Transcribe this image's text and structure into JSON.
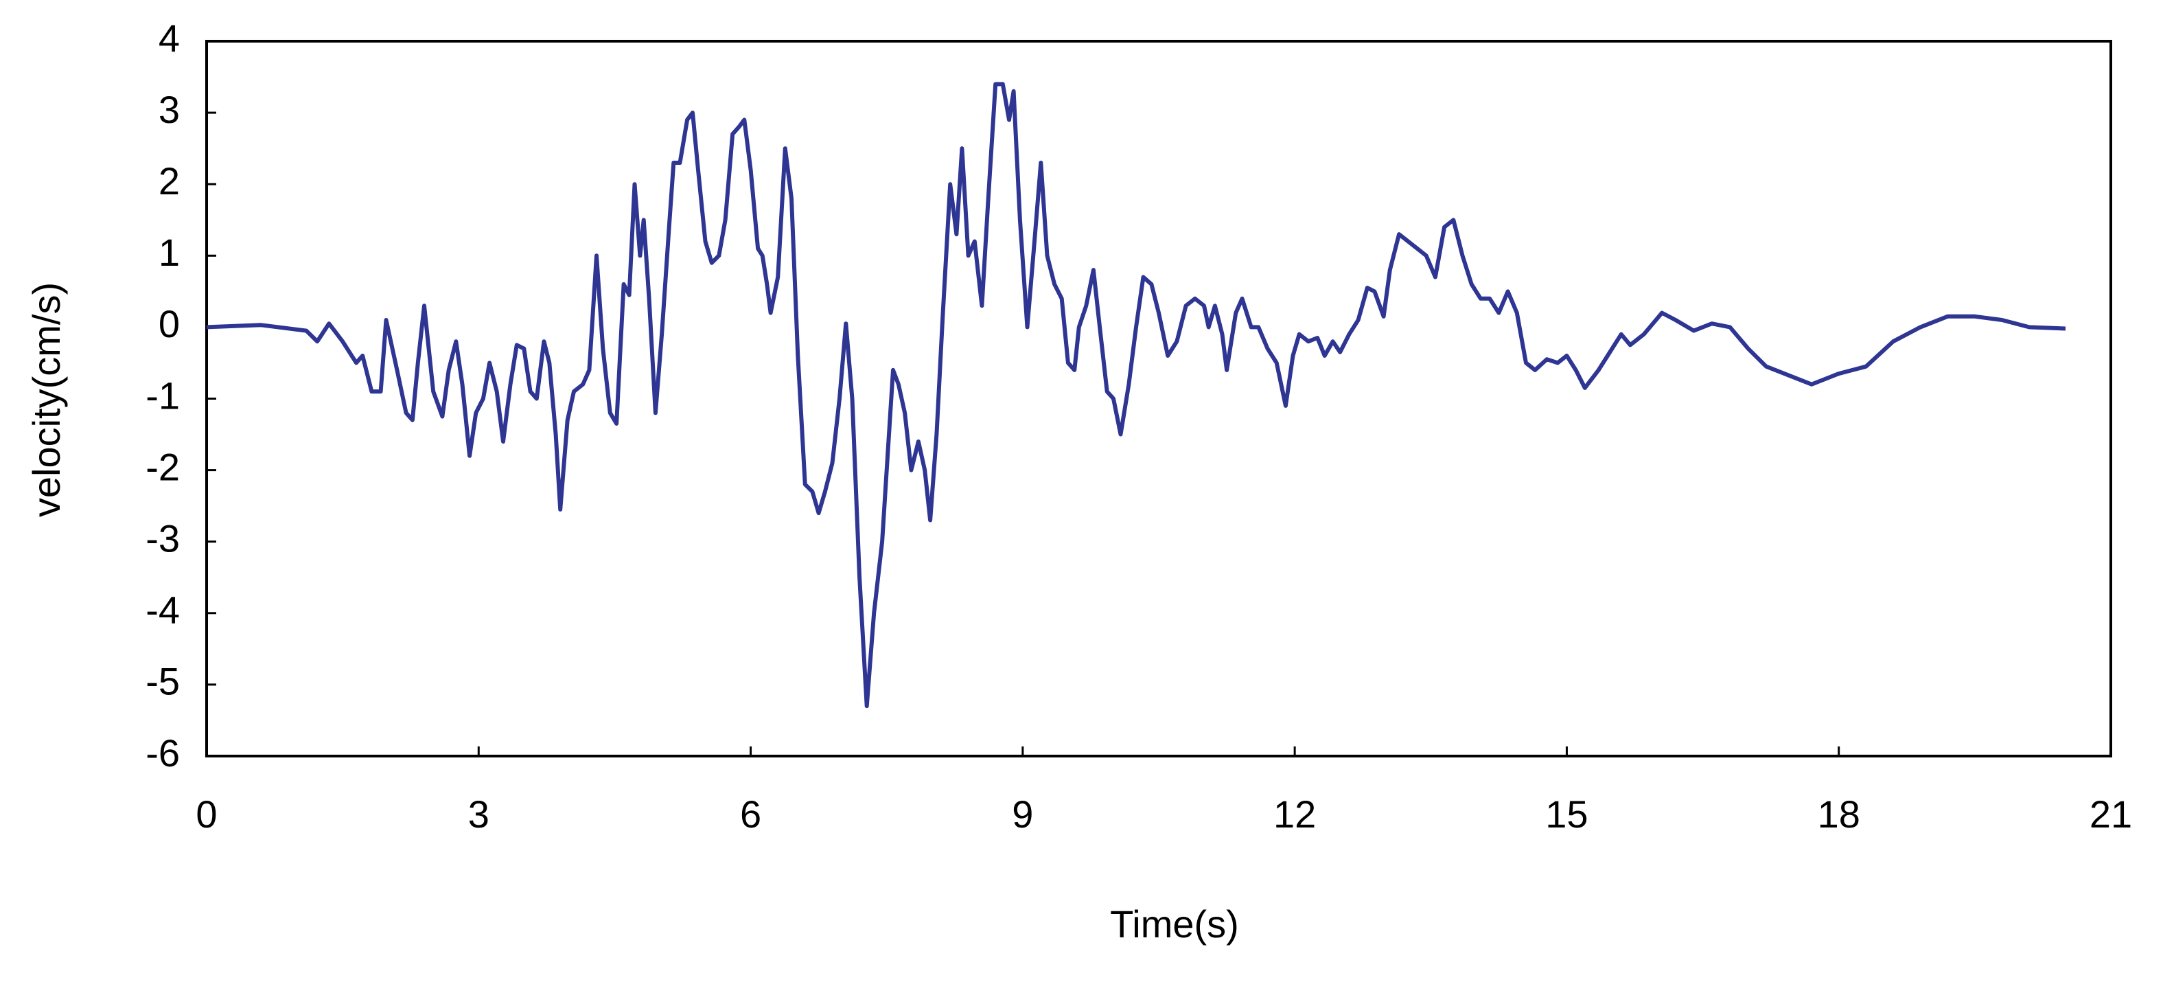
{
  "chart_data": {
    "type": "line",
    "x_label": "Time(s)",
    "y_label": "velocity(cm/s)",
    "color": "#2e3592",
    "xlim": [
      0,
      21
    ],
    "xticks": [
      0,
      3,
      6,
      9,
      12,
      15,
      18,
      21
    ],
    "ylim": [
      -6,
      4
    ],
    "yticks": [
      -6,
      -5,
      -4,
      -3,
      -2,
      -1,
      0,
      1,
      2,
      3,
      4
    ],
    "x": [
      0,
      0.6,
      1.1,
      1.22,
      1.35,
      1.5,
      1.65,
      1.72,
      1.82,
      1.92,
      1.98,
      2.1,
      2.2,
      2.27,
      2.33,
      2.4,
      2.5,
      2.6,
      2.67,
      2.75,
      2.82,
      2.9,
      2.97,
      3.05,
      3.12,
      3.2,
      3.27,
      3.35,
      3.42,
      3.5,
      3.57,
      3.64,
      3.72,
      3.78,
      3.85,
      3.9,
      3.98,
      4.05,
      4.15,
      4.22,
      4.3,
      4.37,
      4.45,
      4.52,
      4.6,
      4.66,
      4.72,
      4.78,
      4.82,
      4.88,
      4.95,
      5.02,
      5.1,
      5.15,
      5.22,
      5.3,
      5.36,
      5.42,
      5.5,
      5.57,
      5.65,
      5.72,
      5.8,
      5.87,
      5.93,
      6.0,
      6.08,
      6.13,
      6.18,
      6.22,
      6.3,
      6.38,
      6.45,
      6.52,
      6.6,
      6.68,
      6.75,
      6.82,
      6.9,
      6.98,
      7.05,
      7.12,
      7.2,
      7.28,
      7.36,
      7.45,
      7.5,
      7.57,
      7.63,
      7.7,
      7.77,
      7.85,
      7.92,
      7.98,
      8.05,
      8.12,
      8.2,
      8.27,
      8.33,
      8.4,
      8.47,
      8.55,
      8.62,
      8.7,
      8.78,
      8.85,
      8.9,
      8.97,
      9.05,
      9.13,
      9.2,
      9.27,
      9.35,
      9.43,
      9.5,
      9.57,
      9.62,
      9.7,
      9.78,
      9.85,
      9.93,
      10.0,
      10.08,
      10.17,
      10.25,
      10.33,
      10.42,
      10.5,
      10.6,
      10.7,
      10.8,
      10.9,
      11.0,
      11.05,
      11.12,
      11.2,
      11.25,
      11.35,
      11.42,
      11.52,
      11.6,
      11.7,
      11.8,
      11.9,
      11.98,
      12.05,
      12.15,
      12.25,
      12.33,
      12.42,
      12.5,
      12.6,
      12.7,
      12.8,
      12.88,
      12.98,
      13.05,
      13.15,
      13.25,
      13.35,
      13.45,
      13.55,
      13.65,
      13.75,
      13.85,
      13.95,
      14.05,
      14.15,
      14.25,
      14.35,
      14.45,
      14.55,
      14.65,
      14.78,
      14.9,
      15.0,
      15.1,
      15.2,
      15.35,
      15.5,
      15.6,
      15.7,
      15.85,
      16.05,
      16.2,
      16.4,
      16.6,
      16.8,
      17.0,
      17.2,
      17.5,
      17.7,
      18.0,
      18.3,
      18.6,
      18.9,
      19.2,
      19.5,
      19.8,
      20.1,
      20.5
    ],
    "values": [
      0,
      0.03,
      -0.05,
      -0.2,
      0.05,
      -0.2,
      -0.5,
      -0.4,
      -0.9,
      -0.9,
      0.1,
      -0.6,
      -1.2,
      -1.3,
      -0.5,
      0.3,
      -0.9,
      -1.25,
      -0.6,
      -0.2,
      -0.8,
      -1.8,
      -1.2,
      -1.0,
      -0.5,
      -0.9,
      -1.6,
      -0.8,
      -0.25,
      -0.3,
      -0.9,
      -1.0,
      -0.2,
      -0.5,
      -1.5,
      -2.55,
      -1.3,
      -0.9,
      -0.8,
      -0.6,
      1.0,
      -0.3,
      -1.2,
      -1.35,
      0.6,
      0.45,
      2.0,
      1.0,
      1.5,
      0.4,
      -1.2,
      -0.1,
      1.4,
      2.3,
      2.3,
      2.9,
      3.0,
      2.2,
      1.2,
      0.9,
      1.0,
      1.5,
      2.7,
      2.8,
      2.9,
      2.2,
      1.1,
      1.0,
      0.6,
      0.2,
      0.7,
      2.5,
      1.8,
      -0.4,
      -2.2,
      -2.3,
      -2.6,
      -2.3,
      -1.9,
      -1.0,
      0.05,
      -1.0,
      -3.5,
      -5.3,
      -4.0,
      -3.0,
      -2.0,
      -0.6,
      -0.8,
      -1.2,
      -2.0,
      -1.6,
      -2.0,
      -2.7,
      -1.5,
      0.2,
      2.0,
      1.3,
      2.5,
      1.0,
      1.2,
      0.3,
      1.8,
      3.4,
      3.4,
      2.9,
      3.3,
      1.5,
      0.0,
      1.2,
      2.3,
      1.0,
      0.6,
      0.4,
      -0.5,
      -0.6,
      0.0,
      0.3,
      0.8,
      0.0,
      -0.9,
      -1.0,
      -1.5,
      -0.8,
      0.0,
      0.7,
      0.6,
      0.2,
      -0.4,
      -0.2,
      0.3,
      0.4,
      0.3,
      0.0,
      0.3,
      -0.1,
      -0.6,
      0.2,
      0.4,
      0.0,
      0.0,
      -0.3,
      -0.5,
      -1.1,
      -0.4,
      -0.1,
      -0.2,
      -0.15,
      -0.4,
      -0.2,
      -0.35,
      -0.1,
      0.1,
      0.55,
      0.5,
      0.15,
      0.8,
      1.3,
      1.2,
      1.1,
      1.0,
      0.7,
      1.4,
      1.5,
      1.0,
      0.6,
      0.4,
      0.4,
      0.2,
      0.5,
      0.2,
      -0.5,
      -0.6,
      -0.45,
      -0.5,
      -0.4,
      -0.6,
      -0.85,
      -0.6,
      -0.3,
      -0.1,
      -0.25,
      -0.1,
      0.2,
      0.1,
      -0.05,
      0.05,
      0.0,
      -0.3,
      -0.55,
      -0.7,
      -0.8,
      -0.65,
      -0.55,
      -0.2,
      0.0,
      0.15,
      0.15,
      0.1,
      0.0,
      -0.02
    ]
  }
}
